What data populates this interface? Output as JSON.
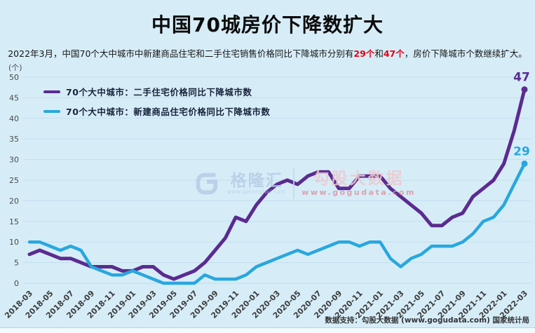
{
  "page": {
    "title": "中国70城房价下降数扩大",
    "subtitle": {
      "part1": "2022年3月，中国70个大中城市中新建商品住宅和二手住宅销售价格同比下降城市分别有",
      "highlight1": "29个",
      "part2": "和",
      "highlight2": "47个",
      "part3": "，房价下降城市个数继续扩大。",
      "highlight_color": "#e60012"
    },
    "unit_label": "(个)",
    "footer": "数据支持：勾股大数据 (www.gogudata.com) 国家统计局"
  },
  "watermark": {
    "brand": "格隆汇",
    "brand_url": "www.gelonghui.com",
    "partner": "勾股大数据",
    "partner_url": "www.gogudata.com"
  },
  "legend": {
    "items": [
      {
        "label": "70个大中城市：二手住宅价格同比下降城市数",
        "color": "#5b2b90"
      },
      {
        "label": "70个大中城市：新建商品住宅价格同比下降城市数",
        "color": "#29a7de"
      }
    ]
  },
  "chart_data": {
    "type": "line",
    "title": "中国70城房价下降数扩大",
    "xlabel": "",
    "ylabel": "(个)",
    "ylim": [
      0,
      50
    ],
    "ytick_step": 5,
    "grid": true,
    "legend_position": "top-left",
    "background": "#d6edf8",
    "grid_color": "#c3dded",
    "xtick_every": 2,
    "x": [
      "2018-03",
      "2018-04",
      "2018-05",
      "2018-06",
      "2018-07",
      "2018-08",
      "2018-09",
      "2018-10",
      "2018-11",
      "2018-12",
      "2019-01",
      "2019-02",
      "2019-03",
      "2019-04",
      "2019-05",
      "2019-06",
      "2019-07",
      "2019-08",
      "2019-09",
      "2019-10",
      "2019-11",
      "2019-12",
      "2020-01",
      "2020-02",
      "2020-03",
      "2020-04",
      "2020-05",
      "2020-06",
      "2020-07",
      "2020-08",
      "2020-09",
      "2020-10",
      "2020-11",
      "2020-12",
      "2021-01",
      "2021-02",
      "2021-03",
      "2021-04",
      "2021-05",
      "2021-06",
      "2021-07",
      "2021-08",
      "2021-09",
      "2021-10",
      "2021-11",
      "2021-12",
      "2022-01",
      "2022-02",
      "2022-03"
    ],
    "series": [
      {
        "name": "70个大中城市：二手住宅价格同比下降城市数",
        "color": "#5b2b90",
        "line_width": 5,
        "values": [
          7,
          8,
          7,
          6,
          6,
          5,
          4,
          4,
          4,
          3,
          3,
          4,
          4,
          2,
          1,
          2,
          3,
          5,
          8,
          11,
          16,
          15,
          19,
          22,
          24,
          25,
          24,
          26,
          27,
          27,
          23,
          23,
          26,
          26,
          26,
          23,
          21,
          19,
          17,
          14,
          14,
          16,
          17,
          21,
          23,
          25,
          29,
          37,
          47
        ],
        "end_label": "47"
      },
      {
        "name": "70个大中城市：新建商品住宅价格同比下降城市数",
        "color": "#29a7de",
        "line_width": 4.5,
        "values": [
          10,
          10,
          9,
          8,
          9,
          8,
          4,
          3,
          2,
          2,
          3,
          2,
          1,
          0,
          0,
          0,
          0,
          2,
          1,
          1,
          1,
          2,
          4,
          5,
          6,
          7,
          8,
          7,
          8,
          9,
          10,
          10,
          9,
          10,
          10,
          6,
          4,
          6,
          7,
          9,
          9,
          9,
          10,
          12,
          15,
          16,
          19,
          24,
          29
        ],
        "end_label": "29"
      }
    ]
  }
}
